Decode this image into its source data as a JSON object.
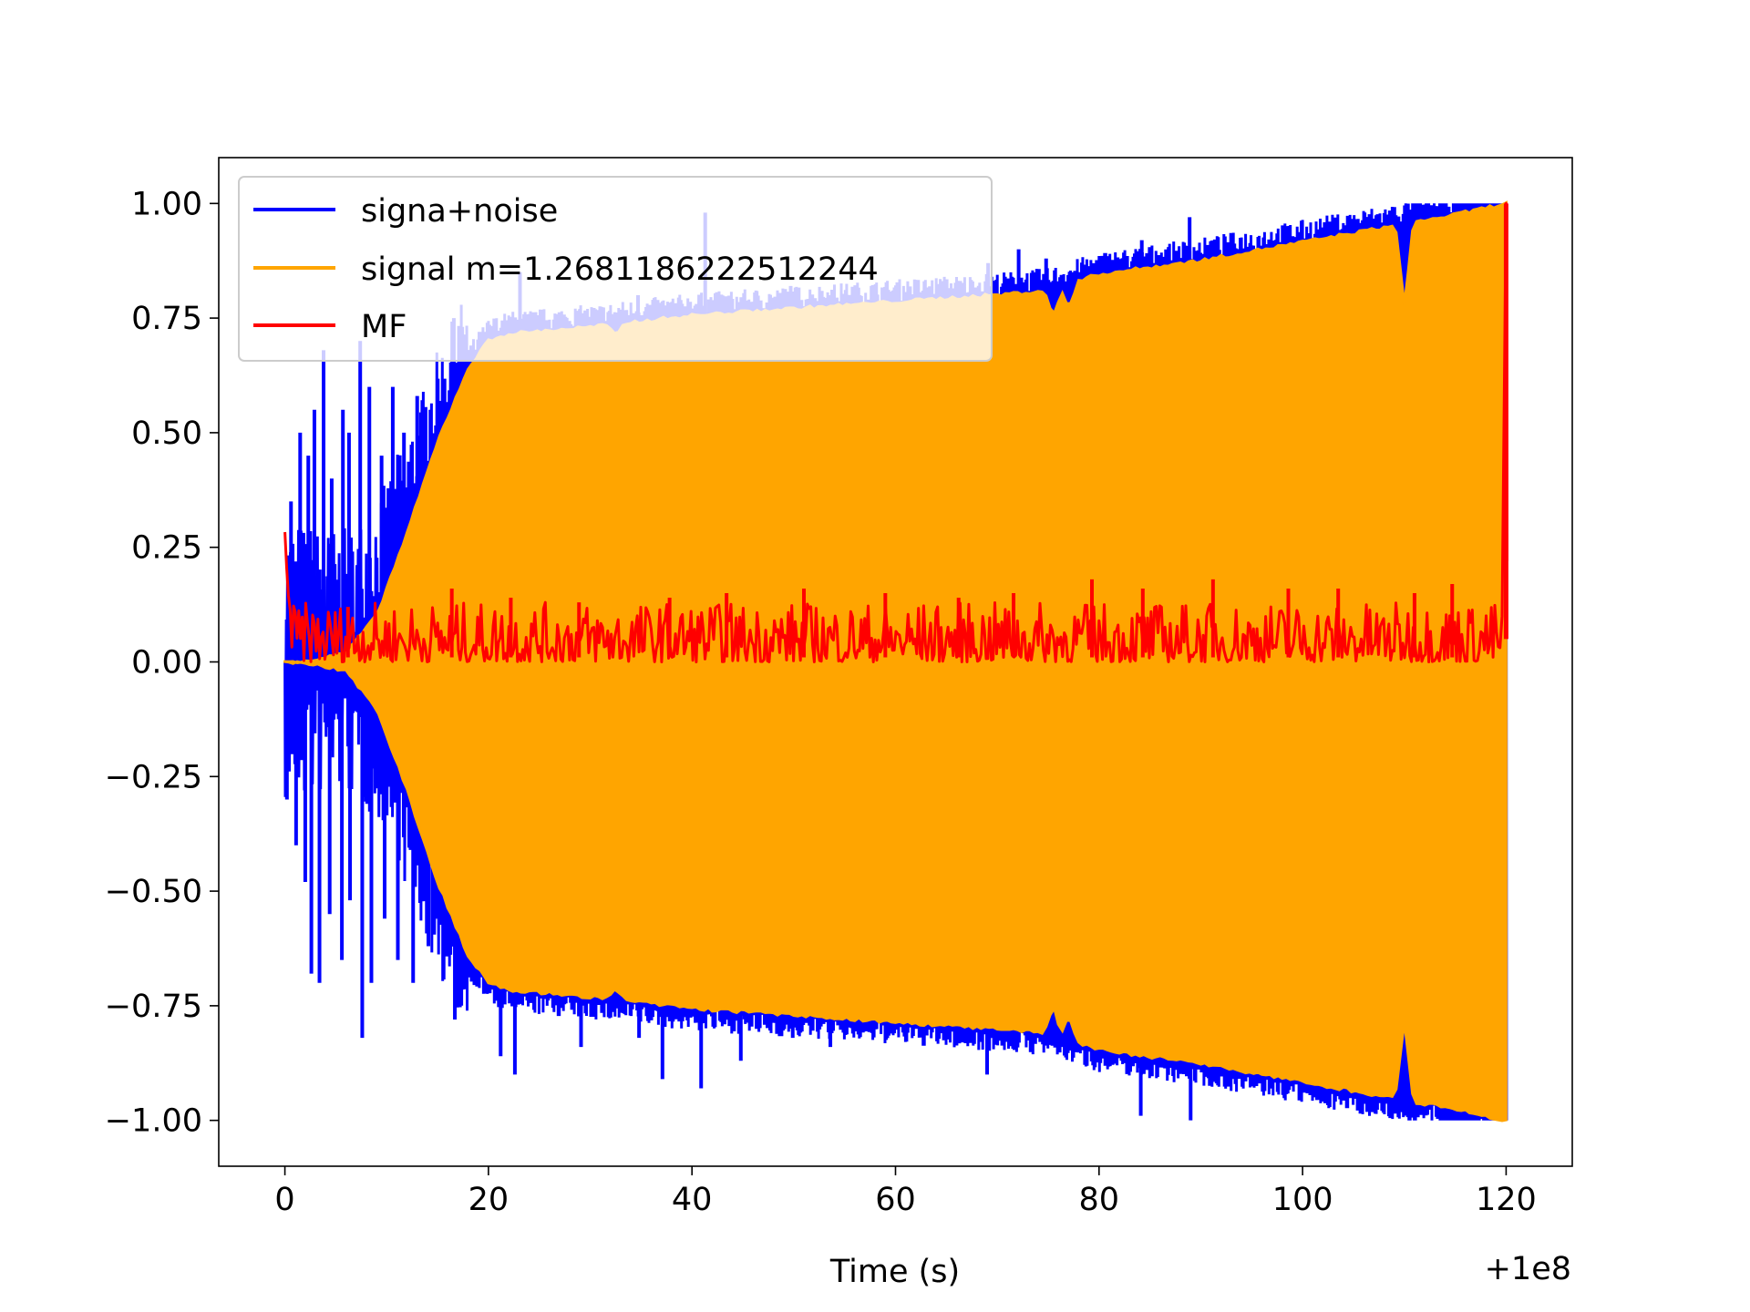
{
  "chart_data": {
    "type": "line",
    "title": "",
    "xlabel": "Time (s)",
    "ylabel": "",
    "x_offset_label": "+1e8",
    "xlim": [
      -6.5,
      126.5
    ],
    "ylim": [
      -1.1,
      1.1
    ],
    "xticks": [
      0,
      20,
      40,
      60,
      80,
      100,
      120
    ],
    "xtick_labels": [
      "0",
      "20",
      "40",
      "60",
      "80",
      "100",
      "120"
    ],
    "yticks": [
      1.0,
      0.75,
      0.5,
      0.25,
      0.0,
      -0.25,
      -0.5,
      -0.75,
      -1.0
    ],
    "ytick_labels": [
      "1.00",
      "0.75",
      "0.50",
      "0.25",
      "0.00",
      "−0.25",
      "−0.50",
      "−0.75",
      "−1.00"
    ],
    "grid": false,
    "legend_position": "upper-left",
    "series": [
      {
        "name": "signa+noise",
        "color": "#0000ff",
        "x_range": [
          0,
          120
        ],
        "x_start": 0,
        "x_end": 120,
        "peaks_upper": [
          [
            0.6,
            0.35
          ],
          [
            1.5,
            0.5
          ],
          [
            2.3,
            0.45
          ],
          [
            2.9,
            0.55
          ],
          [
            3.8,
            0.68
          ],
          [
            4.6,
            0.4
          ],
          [
            5.7,
            0.55
          ],
          [
            6.3,
            0.5
          ],
          [
            7.4,
            0.7
          ],
          [
            8.3,
            0.6
          ],
          [
            9.5,
            0.45
          ],
          [
            10.6,
            0.6
          ],
          [
            11.7,
            0.5
          ],
          [
            13.0,
            0.58
          ],
          [
            14.3,
            0.55
          ],
          [
            16.6,
            0.75
          ],
          [
            21.3,
            0.72
          ],
          [
            23.1,
            0.85
          ],
          [
            25.9,
            0.68
          ],
          [
            29.0,
            0.77
          ],
          [
            34.7,
            0.8
          ],
          [
            37.0,
            0.77
          ],
          [
            41.3,
            0.98
          ],
          [
            44.9,
            0.78
          ],
          [
            49.7,
            0.82
          ],
          [
            53.5,
            0.8
          ],
          [
            60.2,
            0.72
          ],
          [
            69.1,
            0.87
          ],
          [
            72.1,
            0.9
          ],
          [
            74.8,
            0.88
          ],
          [
            84.2,
            0.92
          ],
          [
            88.9,
            0.97
          ],
          [
            95.5,
            0.87
          ],
          [
            99.6,
            0.89
          ],
          [
            110.5,
            0.83
          ],
          [
            119.9,
            1.0
          ]
        ],
        "peaks_lower": [
          [
            0.2,
            -0.3
          ],
          [
            1.1,
            -0.4
          ],
          [
            2.0,
            -0.48
          ],
          [
            2.6,
            -0.68
          ],
          [
            3.4,
            -0.7
          ],
          [
            4.4,
            -0.55
          ],
          [
            5.6,
            -0.65
          ],
          [
            6.4,
            -0.52
          ],
          [
            7.6,
            -0.82
          ],
          [
            8.5,
            -0.7
          ],
          [
            9.8,
            -0.56
          ],
          [
            11.1,
            -0.65
          ],
          [
            12.6,
            -0.7
          ],
          [
            14.1,
            -0.62
          ],
          [
            16.7,
            -0.78
          ],
          [
            21.2,
            -0.86
          ],
          [
            22.6,
            -0.9
          ],
          [
            29.1,
            -0.84
          ],
          [
            34.8,
            -0.82
          ],
          [
            37.1,
            -0.91
          ],
          [
            40.9,
            -0.93
          ],
          [
            44.8,
            -0.87
          ],
          [
            49.9,
            -0.82
          ],
          [
            53.6,
            -0.84
          ],
          [
            69.0,
            -0.9
          ],
          [
            71.8,
            -0.84
          ],
          [
            84.1,
            -0.99
          ],
          [
            89.0,
            -1.0
          ],
          [
            96.0,
            -0.88
          ],
          [
            100.0,
            -0.9
          ],
          [
            111.0,
            -0.93
          ],
          [
            119.9,
            -0.92
          ]
        ]
      },
      {
        "name": "signal m=1.2681186222512244",
        "color": "#ffa500",
        "x_range": [
          0,
          120
        ],
        "envelope_upper": [
          [
            0,
            0.0
          ],
          [
            3,
            0.005
          ],
          [
            6,
            0.02
          ],
          [
            9,
            0.1
          ],
          [
            12,
            0.28
          ],
          [
            15,
            0.48
          ],
          [
            18,
            0.64
          ],
          [
            20,
            0.7
          ],
          [
            22,
            0.715
          ],
          [
            30,
            0.73
          ],
          [
            40,
            0.755
          ],
          [
            50,
            0.77
          ],
          [
            60,
            0.785
          ],
          [
            70,
            0.8
          ],
          [
            75,
            0.81
          ],
          [
            80,
            0.845
          ],
          [
            90,
            0.875
          ],
          [
            100,
            0.915
          ],
          [
            110,
            0.955
          ],
          [
            115,
            0.975
          ],
          [
            120,
            1.0
          ]
        ],
        "envelope_lower": [
          [
            0,
            0.0
          ],
          [
            3,
            -0.005
          ],
          [
            6,
            -0.02
          ],
          [
            9,
            -0.1
          ],
          [
            12,
            -0.28
          ],
          [
            15,
            -0.48
          ],
          [
            18,
            -0.64
          ],
          [
            20,
            -0.7
          ],
          [
            22,
            -0.715
          ],
          [
            30,
            -0.73
          ],
          [
            40,
            -0.755
          ],
          [
            50,
            -0.77
          ],
          [
            60,
            -0.785
          ],
          [
            70,
            -0.8
          ],
          [
            75,
            -0.81
          ],
          [
            80,
            -0.845
          ],
          [
            90,
            -0.875
          ],
          [
            100,
            -0.915
          ],
          [
            110,
            -0.955
          ],
          [
            115,
            -0.975
          ],
          [
            120,
            -1.0
          ]
        ],
        "dips": [
          [
            32.5,
            0.71
          ],
          [
            75.5,
            0.75
          ],
          [
            77.0,
            0.77
          ],
          [
            110.0,
            0.78
          ]
        ]
      },
      {
        "name": "MF",
        "color": "#ff0000",
        "x_range": [
          0,
          120
        ],
        "baseline": 0.0,
        "typical_max": 0.13,
        "start_value": 0.24,
        "end_peak": [
          120,
          1.0
        ],
        "spikes": [
          [
            6.2,
            0.12
          ],
          [
            16.4,
            0.16
          ],
          [
            22.2,
            0.14
          ],
          [
            28.9,
            0.13
          ],
          [
            37.8,
            0.14
          ],
          [
            43.4,
            0.15
          ],
          [
            51.0,
            0.16
          ],
          [
            59.0,
            0.15
          ],
          [
            66.2,
            0.14
          ],
          [
            71.6,
            0.15
          ],
          [
            79.3,
            0.18
          ],
          [
            84.3,
            0.16
          ],
          [
            91.2,
            0.18
          ],
          [
            98.6,
            0.16
          ],
          [
            103.5,
            0.16
          ],
          [
            111.0,
            0.15
          ],
          [
            114.7,
            0.17
          ]
        ]
      }
    ]
  }
}
